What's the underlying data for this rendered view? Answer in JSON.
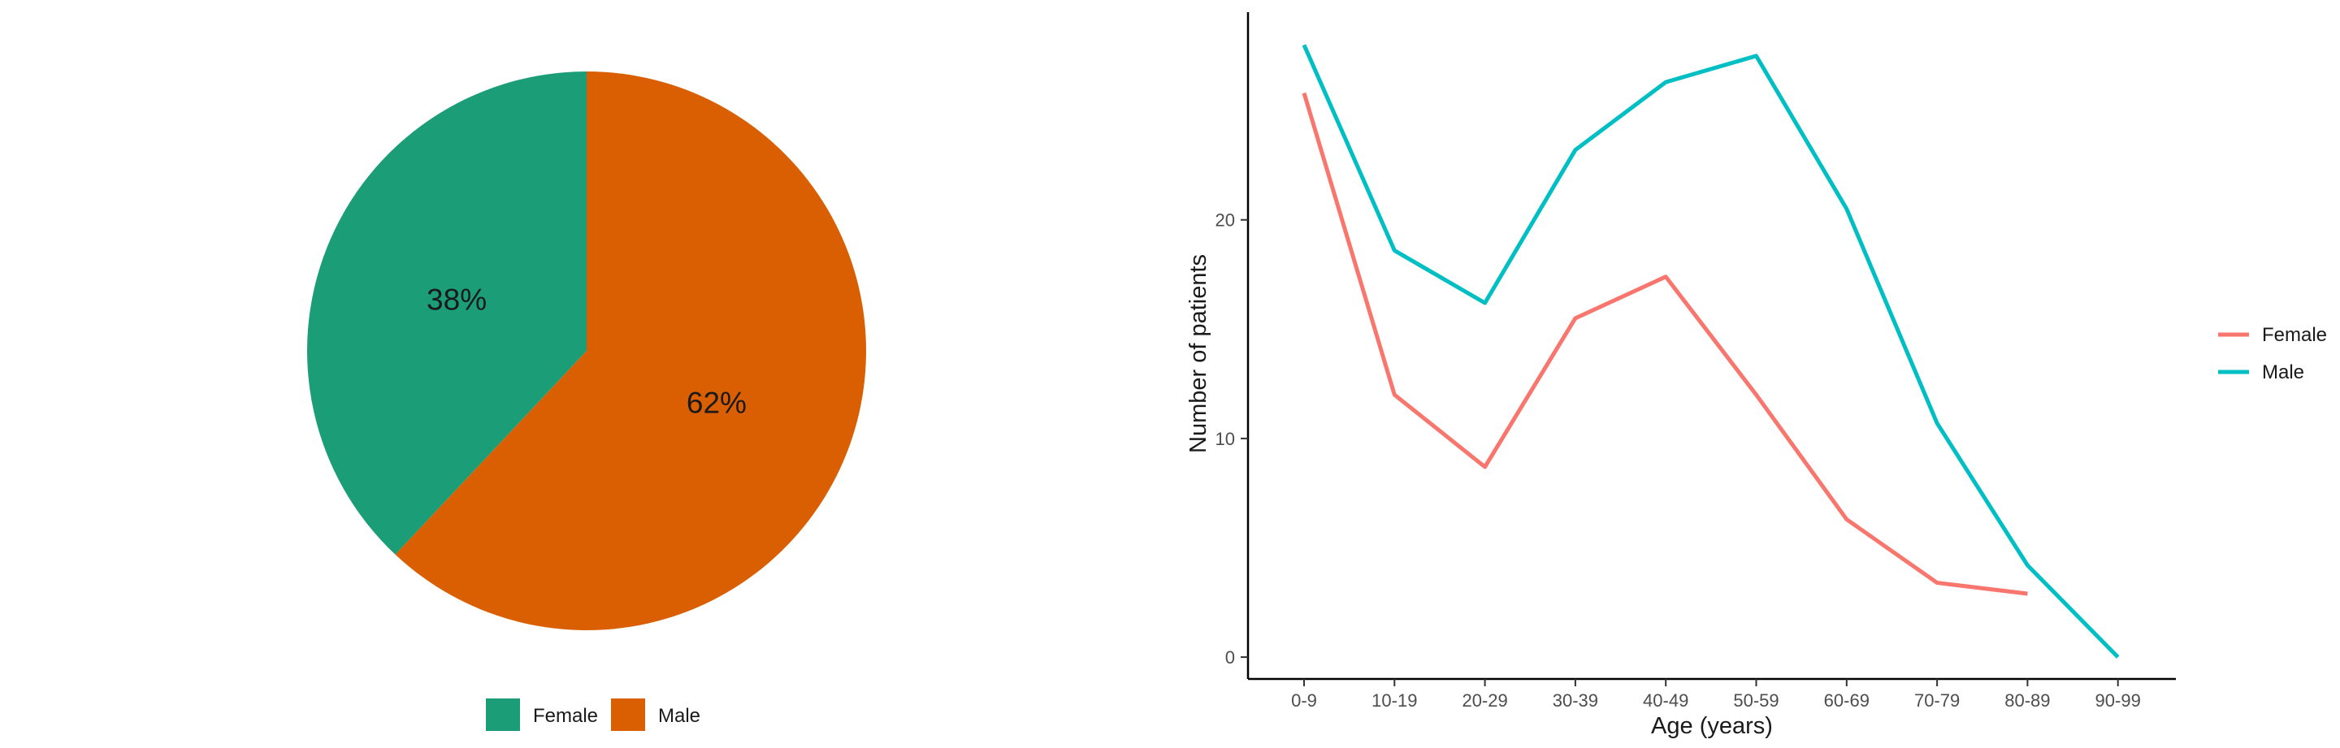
{
  "chart_data": [
    {
      "type": "pie",
      "categories": [
        "Female",
        "Male"
      ],
      "values": [
        38,
        62
      ],
      "labels": [
        "38%",
        "62%"
      ],
      "colors": [
        "#1b9e77",
        "#d95f02"
      ],
      "legend": {
        "position": "bottom",
        "entries": [
          "Female",
          "Male"
        ]
      }
    },
    {
      "type": "line",
      "categories": [
        "0-9",
        "10-19",
        "20-29",
        "30-39",
        "40-49",
        "50-59",
        "60-69",
        "70-79",
        "80-89",
        "90-99"
      ],
      "xlabel": "Age (years)",
      "ylabel": "Number of patients",
      "ylim": [
        -1,
        29.5
      ],
      "yticks": [
        0,
        10,
        20
      ],
      "ytick_labels": [
        "0",
        "10",
        "20"
      ],
      "grid": false,
      "legend": {
        "position": "right"
      },
      "series": [
        {
          "name": "Female",
          "color": "#f8766d",
          "values": [
            25.8,
            12.0,
            8.7,
            15.5,
            17.4,
            12.0,
            6.3,
            3.4,
            2.9,
            null
          ]
        },
        {
          "name": "Male",
          "color": "#00bfc4",
          "values": [
            28.0,
            18.6,
            16.2,
            23.2,
            26.3,
            27.5,
            20.5,
            10.7,
            4.2,
            0.0
          ]
        }
      ]
    }
  ]
}
